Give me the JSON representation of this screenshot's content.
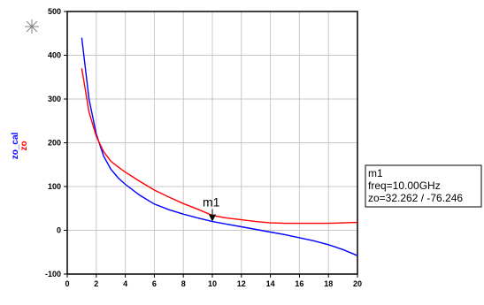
{
  "chart_data": {
    "type": "line",
    "xlabel": "",
    "xlim": [
      0,
      20
    ],
    "ylim": [
      -100,
      500
    ],
    "xticks": [
      "0",
      "2",
      "4",
      "6",
      "8",
      "10",
      "12",
      "14",
      "16",
      "18",
      "20"
    ],
    "yticks": [
      "-100",
      "0",
      "100",
      "200",
      "300",
      "400",
      "500"
    ],
    "grid": true,
    "ylabels": [
      {
        "text": "zo_cal",
        "color": "#0000ff"
      },
      {
        "text": "zo",
        "color": "#ff0000"
      }
    ],
    "series": [
      {
        "name": "zo_cal",
        "color": "#0000ff",
        "x": [
          1.0,
          1.5,
          2.0,
          2.5,
          3.0,
          3.5,
          4.0,
          5.0,
          6.0,
          7.0,
          8.0,
          9.0,
          10.0,
          11.0,
          12.0,
          13.0,
          14.0,
          15.0,
          16.0,
          17.0,
          18.0,
          19.0,
          20.0
        ],
        "y": [
          440,
          300,
          220,
          170,
          140,
          120,
          105,
          80,
          60,
          47,
          37,
          28,
          20,
          14,
          8,
          2,
          -4,
          -10,
          -17,
          -24,
          -33,
          -44,
          -58
        ]
      },
      {
        "name": "zo",
        "color": "#ff0000",
        "x": [
          1.0,
          1.5,
          2.0,
          2.5,
          3.0,
          3.5,
          4.0,
          5.0,
          6.0,
          7.0,
          8.0,
          9.0,
          10.0,
          11.0,
          12.0,
          13.0,
          14.0,
          15.0,
          16.0,
          17.0,
          18.0,
          19.0,
          20.0
        ],
        "y": [
          370,
          270,
          215,
          180,
          158,
          145,
          133,
          112,
          92,
          76,
          61,
          48,
          34,
          28,
          24,
          20,
          17,
          16,
          16,
          16,
          16,
          17,
          18
        ]
      }
    ],
    "marker": {
      "name": "m1",
      "x": 10.0,
      "y": 20,
      "lines": [
        "m1",
        "freq=10.00GHz",
        "zo=32.262 / -76.246"
      ]
    }
  }
}
